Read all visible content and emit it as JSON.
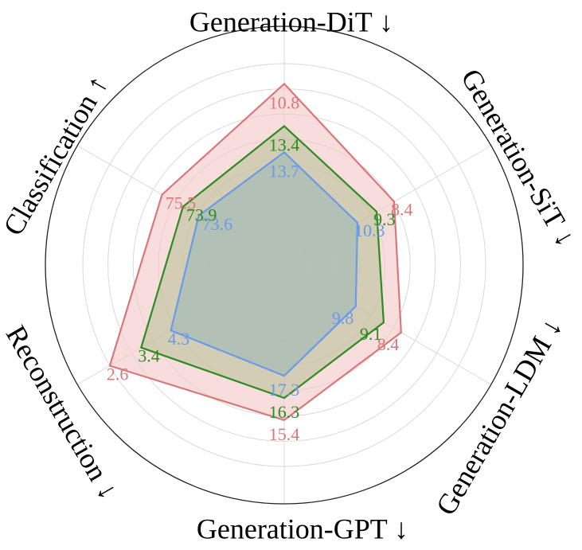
{
  "chart_data": {
    "type": "radar",
    "axes": [
      {
        "label": "Generation-DiT ↓"
      },
      {
        "label": "Generation-SiT ↓"
      },
      {
        "label": "Generation-LDM ↓"
      },
      {
        "label": "Generation-GPT ↓"
      },
      {
        "label": "Reconstruction ↓"
      },
      {
        "label": "Classification ↑"
      }
    ],
    "series": [
      {
        "name": "series-red",
        "color": "#d9777a",
        "fill": "#f4c6c6",
        "radius_fraction": [
          0.9,
          0.63,
          0.67,
          0.77,
          1.0,
          0.7
        ],
        "value_labels": [
          "10.8",
          "8.4",
          "8.4",
          "15.4",
          "2.6",
          "75.5"
        ]
      },
      {
        "name": "series-green",
        "color": "#2e8b22",
        "fill": "#b9c39a",
        "radius_fraction": [
          0.69,
          0.53,
          0.57,
          0.66,
          0.82,
          0.58
        ],
        "value_labels": [
          "13.4",
          "9.3",
          "9.1",
          "16.3",
          "3.4",
          "73.9"
        ]
      },
      {
        "name": "series-blue",
        "color": "#6b9be6",
        "fill": "#9fb8b5",
        "radius_fraction": [
          0.56,
          0.42,
          0.41,
          0.55,
          0.65,
          0.49
        ],
        "value_labels": [
          "13.7",
          "10.3",
          "9.8",
          "17.3",
          "4.3",
          "73.6"
        ]
      }
    ],
    "rings": 8,
    "grid": true
  }
}
